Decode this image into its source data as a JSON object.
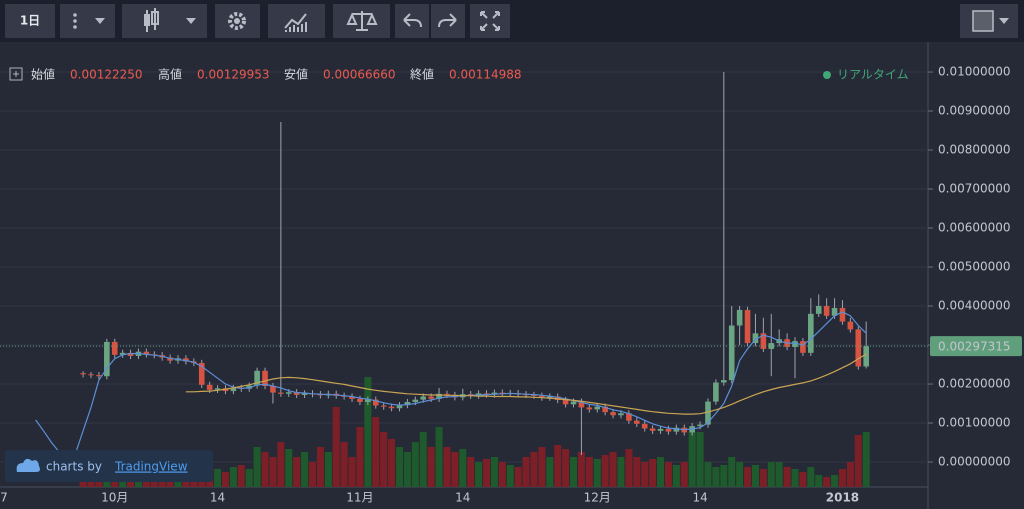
{
  "toolbar": {
    "interval": "1日"
  },
  "legend": {
    "open_label": "始値",
    "open": "0.00122250",
    "high_label": "高値",
    "high": "0.00129953",
    "low_label": "安値",
    "low": "0.00066660",
    "close_label": "終値",
    "close": "0.00114988"
  },
  "status": "リアルタイム",
  "watermark": {
    "prefix": "charts by",
    "brand": "TradingView"
  },
  "chart_data": {
    "type": "candlestick",
    "grid": true,
    "up_color": "#6ba583",
    "down_color": "#d75442",
    "volume_up_color": "#1f5a2c",
    "volume_down_color": "#7c1f26",
    "ylim": [
      -0.00064,
      0.01077
    ],
    "yticks": [
      {
        "value": 0,
        "label": "0.00000000"
      },
      {
        "value": 0.001,
        "label": "0.00100000"
      },
      {
        "value": 0.002,
        "label": "0.00200000"
      },
      {
        "value": 0.003,
        "label": "0.00300000"
      },
      {
        "value": 0.004,
        "label": "0.00400000"
      },
      {
        "value": 0.005,
        "label": "0.00500000"
      },
      {
        "value": 0.006,
        "label": "0.00600000"
      },
      {
        "value": 0.007,
        "label": "0.00700000"
      },
      {
        "value": 0.008,
        "label": "0.00800000"
      },
      {
        "value": 0.009,
        "label": "0.00900000"
      },
      {
        "value": 0.01,
        "label": "0.01000000"
      }
    ],
    "last_price": 0.00297315,
    "last_price_color": "#5f9f7c",
    "vlim": [
      0,
      400
    ],
    "categories": [
      "7",
      null,
      null,
      null,
      null,
      null,
      null,
      null,
      null,
      null,
      null,
      null,
      null,
      null,
      "10月",
      null,
      null,
      null,
      null,
      null,
      null,
      null,
      null,
      null,
      null,
      null,
      null,
      "14",
      null,
      null,
      null,
      null,
      null,
      null,
      null,
      null,
      null,
      null,
      null,
      null,
      null,
      null,
      null,
      null,
      null,
      "11月",
      null,
      null,
      null,
      null,
      null,
      null,
      null,
      null,
      null,
      null,
      null,
      null,
      "14",
      null,
      null,
      null,
      null,
      null,
      null,
      null,
      null,
      null,
      null,
      null,
      null,
      null,
      null,
      null,
      null,
      "12月",
      null,
      null,
      null,
      null,
      null,
      null,
      null,
      null,
      null,
      null,
      null,
      null,
      "14",
      null,
      null,
      null,
      null,
      null,
      null,
      null,
      null,
      null,
      null,
      null,
      null,
      null,
      null,
      null,
      null,
      null,
      "2018",
      null,
      null,
      null,
      null,
      null,
      null,
      null,
      null,
      null,
      null
    ],
    "open": [
      null,
      null,
      null,
      null,
      null,
      null,
      null,
      null,
      null,
      null,
      0.00228,
      0.00225,
      0.00223,
      0.0022,
      0.00308,
      0.00275,
      0.0028,
      0.00272,
      0.00283,
      0.00276,
      0.00274,
      0.00268,
      0.0026,
      0.00266,
      0.00258,
      0.00254,
      0.00198,
      0.00185,
      0.00189,
      0.00182,
      0.0019,
      0.00188,
      0.00196,
      0.00234,
      0.00195,
      0.00178,
      0.00175,
      0.00179,
      0.00172,
      0.00176,
      0.00174,
      0.00171,
      0.00175,
      0.0017,
      0.00168,
      0.00162,
      0.00154,
      0.0016,
      0.00145,
      0.00142,
      0.00138,
      0.00146,
      0.00154,
      0.0016,
      0.00168,
      0.00162,
      0.00175,
      0.00172,
      0.00166,
      0.00174,
      0.0017,
      0.00176,
      0.00173,
      0.00178,
      0.00175,
      0.00177,
      0.00174,
      0.00172,
      0.0017,
      0.00165,
      0.00168,
      0.00159,
      0.00148,
      0.00155,
      0.0014,
      0.00135,
      0.00142,
      0.00128,
      0.0012,
      0.00125,
      0.00106,
      0.00098,
      0.00086,
      0.0008,
      0.00085,
      0.00078,
      0.00088,
      0.00076,
      0.00092,
      0.00096,
      0.00155,
      0.00204,
      0.0021,
      0.0035,
      0.0039,
      0.00305,
      0.0033,
      0.0029,
      0.00305,
      0.00315,
      0.00295,
      0.0031,
      0.0028,
      0.0038,
      0.004,
      0.00375,
      0.00395,
      0.0036,
      0.0034,
      0.00245,
      null,
      null,
      null,
      null,
      null,
      null,
      null
    ],
    "high": [
      null,
      null,
      null,
      null,
      null,
      null,
      null,
      null,
      null,
      null,
      0.00233,
      0.00231,
      0.00231,
      0.00316,
      0.00316,
      0.00288,
      0.00288,
      0.00291,
      0.00291,
      0.00284,
      0.00282,
      0.00276,
      0.00274,
      0.00274,
      0.00266,
      0.00262,
      0.00206,
      0.00197,
      0.00197,
      0.00198,
      0.00198,
      0.00204,
      0.00242,
      0.00242,
      0.00203,
      0.00872,
      0.00187,
      0.00187,
      0.00184,
      0.00184,
      0.00182,
      0.00183,
      0.00183,
      0.00178,
      0.00176,
      0.0017,
      0.00168,
      0.00168,
      0.00153,
      0.0015,
      0.00154,
      0.00162,
      0.00168,
      0.00176,
      0.00176,
      0.0019,
      0.00183,
      0.0018,
      0.00188,
      0.00182,
      0.00184,
      0.00184,
      0.00186,
      0.00186,
      0.00185,
      0.00185,
      0.00182,
      0.0018,
      0.00178,
      0.00176,
      0.00176,
      0.00167,
      0.00163,
      0.00163,
      0.00148,
      0.0015,
      0.0015,
      0.00136,
      0.00133,
      0.00133,
      0.00114,
      0.00106,
      0.00094,
      0.00093,
      0.00093,
      0.00096,
      0.00096,
      0.001,
      0.00104,
      0.00163,
      0.00212,
      0.01,
      0.004,
      0.004,
      0.00398,
      0.0038,
      0.0037,
      0.0038,
      0.0034,
      0.0033,
      0.0032,
      0.00318,
      0.0042,
      0.0043,
      0.0042,
      0.0042,
      0.00415,
      0.0037,
      0.00348,
      0.0036,
      null,
      null,
      null,
      null,
      null,
      null,
      null
    ],
    "low": [
      null,
      null,
      null,
      null,
      null,
      null,
      null,
      null,
      null,
      null,
      0.00217,
      0.00215,
      0.00212,
      0.00212,
      0.00267,
      0.00267,
      0.00264,
      0.00264,
      0.00268,
      0.00266,
      0.0026,
      0.00252,
      0.00252,
      0.0025,
      0.00246,
      0.0019,
      0.00177,
      0.00177,
      0.00174,
      0.00174,
      0.0018,
      0.0018,
      0.00188,
      0.00187,
      0.0015,
      0.00167,
      0.00167,
      0.00164,
      0.00164,
      0.00166,
      0.00163,
      0.00163,
      0.00162,
      0.0016,
      0.00154,
      0.00146,
      0.00146,
      0.00137,
      0.00134,
      0.0013,
      0.0013,
      0.00138,
      0.00146,
      0.00152,
      0.00154,
      0.00154,
      0.00164,
      0.00158,
      0.00158,
      0.00162,
      0.00162,
      0.00165,
      0.00165,
      0.00167,
      0.00167,
      0.00166,
      0.00164,
      0.00162,
      0.00157,
      0.00157,
      0.00151,
      0.0014,
      0.0014,
      0.00018,
      0.00127,
      0.00127,
      0.0012,
      0.00112,
      0.00112,
      0.00098,
      0.0009,
      0.00078,
      0.00072,
      0.00072,
      0.0007,
      0.0007,
      0.00068,
      0.00068,
      0.00084,
      0.00088,
      0.00147,
      0.00196,
      0.00202,
      0.003,
      0.00297,
      0.00297,
      0.00282,
      0.0022,
      0.00297,
      0.00287,
      0.00215,
      0.00272,
      0.00272,
      0.00372,
      0.00367,
      0.00367,
      0.00352,
      0.00332,
      0.00237,
      0.0024,
      null,
      null,
      null,
      null,
      null,
      null,
      null
    ],
    "close": [
      null,
      null,
      null,
      null,
      null,
      null,
      null,
      null,
      null,
      null,
      0.00225,
      0.00223,
      0.0022,
      0.00308,
      0.00275,
      0.0028,
      0.00272,
      0.00283,
      0.00276,
      0.00274,
      0.00268,
      0.0026,
      0.00266,
      0.00258,
      0.00254,
      0.00198,
      0.00185,
      0.00189,
      0.00182,
      0.0019,
      0.00188,
      0.00196,
      0.00234,
      0.00195,
      0.00178,
      0.00175,
      0.00179,
      0.00172,
      0.00176,
      0.00174,
      0.00171,
      0.00175,
      0.0017,
      0.00168,
      0.00162,
      0.00154,
      0.0016,
      0.00145,
      0.00142,
      0.00138,
      0.00146,
      0.00154,
      0.0016,
      0.00168,
      0.00162,
      0.00175,
      0.00172,
      0.00166,
      0.00174,
      0.0017,
      0.00176,
      0.00173,
      0.00178,
      0.00175,
      0.00177,
      0.00174,
      0.00172,
      0.0017,
      0.00165,
      0.00168,
      0.00159,
      0.00148,
      0.00155,
      0.0014,
      0.00135,
      0.00142,
      0.00128,
      0.0012,
      0.00125,
      0.00106,
      0.00098,
      0.00086,
      0.0008,
      0.00085,
      0.00078,
      0.00088,
      0.00076,
      0.00092,
      0.00096,
      0.00155,
      0.00204,
      0.0021,
      0.0035,
      0.0039,
      0.00305,
      0.0033,
      0.0029,
      0.00305,
      0.00315,
      0.00295,
      0.0031,
      0.0028,
      0.0038,
      0.004,
      0.00375,
      0.00395,
      0.0036,
      0.0034,
      0.00245,
      0.00297,
      null,
      null,
      null,
      null,
      null,
      null,
      null
    ],
    "volume": [
      null,
      null,
      null,
      null,
      null,
      null,
      null,
      null,
      null,
      null,
      10,
      8,
      10,
      30,
      20,
      15,
      18,
      15,
      20,
      15,
      18,
      15,
      12,
      20,
      15,
      30,
      20,
      18,
      15,
      20,
      22,
      18,
      40,
      35,
      30,
      45,
      38,
      30,
      35,
      25,
      40,
      35,
      80,
      45,
      30,
      60,
      110,
      70,
      55,
      48,
      40,
      35,
      45,
      55,
      40,
      60,
      40,
      35,
      38,
      30,
      25,
      28,
      30,
      25,
      22,
      20,
      30,
      35,
      40,
      30,
      42,
      38,
      30,
      35,
      30,
      28,
      32,
      35,
      30,
      38,
      30,
      25,
      28,
      30,
      25,
      22,
      25,
      55,
      55,
      25,
      20,
      22,
      30,
      25,
      20,
      22,
      18,
      25,
      25,
      20,
      18,
      15,
      20,
      12,
      10,
      12,
      18,
      25,
      52,
      55,
      null,
      null,
      null,
      null,
      null,
      null,
      null
    ],
    "moving_averages": [
      {
        "color": "#5b8fd8",
        "values": [
          null,
          null,
          null,
          null,
          0.00108,
          0.0008,
          0.0005,
          0.00025,
          0.00018,
          0.0002,
          0.0008,
          0.0014,
          0.0021,
          0.0024,
          0.00265,
          0.00275,
          0.00278,
          0.00278,
          0.00276,
          0.00274,
          0.00271,
          0.00266,
          0.00263,
          0.0026,
          0.00256,
          0.00245,
          0.0023,
          0.00215,
          0.002,
          0.00192,
          0.00189,
          0.0019,
          0.00198,
          0.00199,
          0.00195,
          0.0019,
          0.00183,
          0.00178,
          0.00177,
          0.00175,
          0.00174,
          0.00173,
          0.00172,
          0.0017,
          0.00168,
          0.00164,
          0.00161,
          0.00157,
          0.00152,
          0.00148,
          0.00146,
          0.00147,
          0.0015,
          0.00155,
          0.00159,
          0.00164,
          0.00167,
          0.00168,
          0.0017,
          0.00171,
          0.00172,
          0.00173,
          0.00174,
          0.00175,
          0.00176,
          0.00175,
          0.00174,
          0.00173,
          0.00171,
          0.00169,
          0.00166,
          0.00162,
          0.00158,
          0.00153,
          0.00148,
          0.00145,
          0.0014,
          0.00134,
          0.0013,
          0.00124,
          0.00116,
          0.00107,
          0.00098,
          0.00092,
          0.00087,
          0.00085,
          0.00083,
          0.00085,
          0.00088,
          0.00101,
          0.00125,
          0.0015,
          0.00195,
          0.0026,
          0.0029,
          0.00315,
          0.00325,
          0.0032,
          0.0031,
          0.00305,
          0.00305,
          0.003,
          0.00315,
          0.00335,
          0.00355,
          0.00375,
          0.00385,
          0.00375,
          0.0035,
          0.0033,
          null,
          null,
          null,
          null,
          null,
          null,
          null
        ]
      },
      {
        "color": "#c9a552",
        "values": [
          null,
          null,
          null,
          null,
          null,
          null,
          null,
          null,
          null,
          null,
          null,
          null,
          null,
          null,
          null,
          null,
          null,
          null,
          null,
          null,
          null,
          null,
          null,
          0.0018,
          0.0018,
          0.00181,
          0.00182,
          0.00184,
          0.00187,
          0.0019,
          0.00194,
          0.00198,
          0.00203,
          0.00208,
          0.00213,
          0.00216,
          0.00217,
          0.00216,
          0.00214,
          0.00211,
          0.00208,
          0.00205,
          0.00202,
          0.00199,
          0.00195,
          0.00191,
          0.00187,
          0.00184,
          0.00181,
          0.00179,
          0.00177,
          0.00175,
          0.00174,
          0.00173,
          0.00172,
          0.00172,
          0.00171,
          0.00171,
          0.0017,
          0.0017,
          0.00169,
          0.00169,
          0.00168,
          0.00168,
          0.00168,
          0.00167,
          0.00167,
          0.00166,
          0.00165,
          0.00164,
          0.00162,
          0.0016,
          0.00158,
          0.00156,
          0.00153,
          0.0015,
          0.00147,
          0.00144,
          0.00141,
          0.00138,
          0.00135,
          0.00132,
          0.00129,
          0.00127,
          0.00125,
          0.00124,
          0.00123,
          0.00123,
          0.00124,
          0.00128,
          0.00134,
          0.0014,
          0.00148,
          0.00157,
          0.00165,
          0.00173,
          0.0018,
          0.00186,
          0.00191,
          0.00195,
          0.00199,
          0.00203,
          0.00208,
          0.00215,
          0.00223,
          0.00232,
          0.00242,
          0.00252,
          0.00265,
          0.00277,
          null,
          null,
          null,
          null,
          null,
          null,
          null
        ]
      }
    ]
  }
}
